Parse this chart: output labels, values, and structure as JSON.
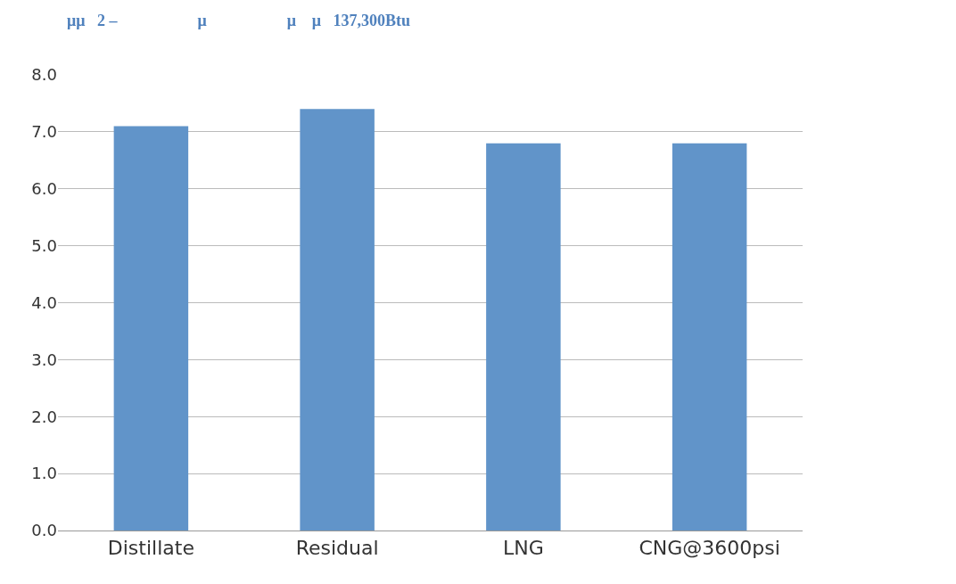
{
  "chart_data": {
    "type": "bar",
    "title": "μμ   2 –                    μ                    μ    μ   137,300Btu",
    "categories": [
      "Distillate",
      "Residual",
      "LNG",
      "CNG@3600psi"
    ],
    "values": [
      7.1,
      7.4,
      6.8,
      6.8
    ],
    "color": "#6194c9",
    "ylim": [
      0,
      8
    ],
    "yticks": [
      {
        "value": 0,
        "label": "0.0"
      },
      {
        "value": 1,
        "label": "1.0"
      },
      {
        "value": 2,
        "label": "2.0"
      },
      {
        "value": 3,
        "label": "3.0"
      },
      {
        "value": 4,
        "label": "4.0"
      },
      {
        "value": 5,
        "label": "5.0"
      },
      {
        "value": 6,
        "label": "6.0"
      },
      {
        "value": 7,
        "label": "7.0"
      },
      {
        "value": 8,
        "label": "8.0"
      }
    ],
    "grid": "y"
  }
}
